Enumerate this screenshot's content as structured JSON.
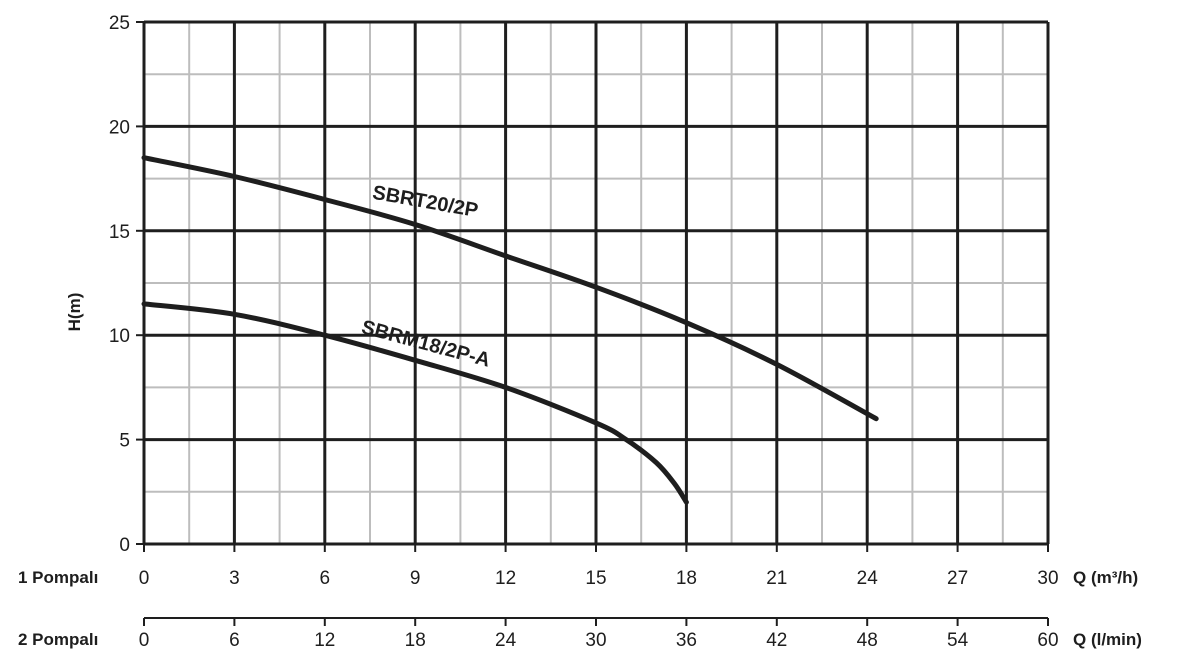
{
  "chart_data": {
    "type": "line",
    "ylabel": "H(m)",
    "ylim": [
      0,
      25
    ],
    "yticks": [
      0,
      5,
      10,
      15,
      20,
      25
    ],
    "grid": true,
    "x_axes": [
      {
        "row_label": "1 Pompalı",
        "unit_label": "Q (m³/h)",
        "ticks": [
          0,
          3,
          6,
          9,
          12,
          15,
          18,
          21,
          24,
          27,
          30
        ],
        "range": [
          0,
          30
        ]
      },
      {
        "row_label": "2 Pompalı",
        "unit_label": "Q (l/min)",
        "ticks": [
          0,
          6,
          12,
          18,
          24,
          30,
          36,
          42,
          48,
          54,
          60
        ],
        "range": [
          0,
          60
        ]
      }
    ],
    "series": [
      {
        "name": "SBRT20/2P",
        "x": [
          0,
          3,
          6,
          9,
          12,
          15,
          18,
          21,
          24.3
        ],
        "y": [
          18.5,
          17.6,
          16.5,
          15.3,
          13.8,
          12.3,
          10.6,
          8.6,
          6.0
        ]
      },
      {
        "name": "SBRM18/2P-A",
        "x": [
          0,
          3,
          6,
          9,
          12,
          15,
          16,
          17,
          17.6,
          18
        ],
        "y": [
          11.5,
          11.0,
          10.0,
          8.8,
          7.5,
          5.8,
          5.0,
          3.9,
          2.9,
          2.0
        ]
      }
    ]
  }
}
